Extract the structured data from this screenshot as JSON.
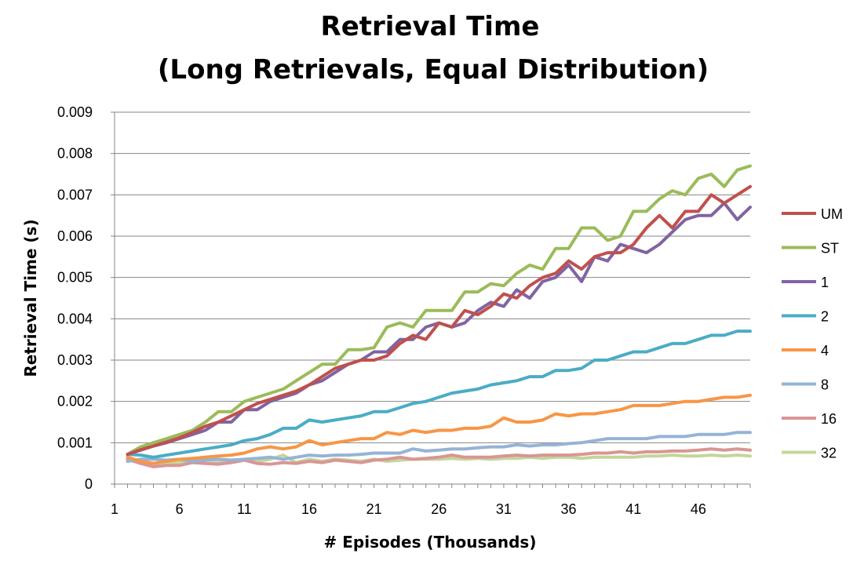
{
  "chart_data": {
    "type": "line",
    "title": "Retrieval Time",
    "subtitle": "(Long Retrievals, Equal Distribution)",
    "xlabel": "# Episodes (Thousands)",
    "ylabel": "Retrieval Time (s)",
    "xlim": [
      1,
      50
    ],
    "ylim": [
      0,
      0.009
    ],
    "x_tick_labels": [
      "1",
      "6",
      "11",
      "16",
      "21",
      "26",
      "31",
      "36",
      "41",
      "46"
    ],
    "x_tick_values": [
      1,
      6,
      11,
      16,
      21,
      26,
      31,
      36,
      41,
      46
    ],
    "y_tick_labels": [
      "0",
      "0.001",
      "0.002",
      "0.003",
      "0.004",
      "0.005",
      "0.006",
      "0.007",
      "0.008",
      "0.009"
    ],
    "y_tick_values": [
      0,
      0.001,
      0.002,
      0.003,
      0.004,
      0.005,
      0.006,
      0.007,
      0.008,
      0.009
    ],
    "grid": true,
    "legend_position": "right",
    "x": [
      2,
      3,
      4,
      5,
      6,
      7,
      8,
      9,
      10,
      11,
      12,
      13,
      14,
      15,
      16,
      17,
      18,
      19,
      20,
      21,
      22,
      23,
      24,
      25,
      26,
      27,
      28,
      29,
      30,
      31,
      32,
      33,
      34,
      35,
      36,
      37,
      38,
      39,
      40,
      41,
      42,
      43,
      44,
      45,
      46,
      47,
      48,
      49,
      50
    ],
    "series": [
      {
        "name": "UM",
        "color": "#C0504D",
        "values": [
          0.00072,
          0.00083,
          0.00092,
          0.00102,
          0.00112,
          0.00125,
          0.0014,
          0.0015,
          0.00165,
          0.0018,
          0.00195,
          0.00205,
          0.00215,
          0.00225,
          0.0024,
          0.0026,
          0.0028,
          0.0029,
          0.003,
          0.003,
          0.0031,
          0.0034,
          0.0036,
          0.0035,
          0.0039,
          0.0038,
          0.0042,
          0.0041,
          0.0043,
          0.0046,
          0.0045,
          0.0048,
          0.005,
          0.0051,
          0.0054,
          0.0052,
          0.0055,
          0.0056,
          0.0056,
          0.0058,
          0.0062,
          0.0065,
          0.0062,
          0.0066,
          0.0066,
          0.007,
          0.0068,
          0.007,
          0.0072
        ]
      },
      {
        "name": "ST",
        "color": "#9BBB59",
        "values": [
          0.00072,
          0.0009,
          0.001,
          0.0011,
          0.0012,
          0.0013,
          0.0015,
          0.00175,
          0.00175,
          0.002,
          0.0021,
          0.0022,
          0.0023,
          0.0025,
          0.0027,
          0.0029,
          0.0029,
          0.00325,
          0.00325,
          0.0033,
          0.0038,
          0.0039,
          0.0038,
          0.0042,
          0.0042,
          0.0042,
          0.00465,
          0.00465,
          0.00485,
          0.0048,
          0.0051,
          0.0053,
          0.0052,
          0.0057,
          0.0057,
          0.0062,
          0.0062,
          0.0059,
          0.006,
          0.0066,
          0.0066,
          0.0069,
          0.0071,
          0.007,
          0.0074,
          0.0075,
          0.0072,
          0.0076,
          0.0077
        ]
      },
      {
        "name": "1",
        "color": "#8064A2",
        "values": [
          0.00072,
          0.00082,
          0.00092,
          0.001,
          0.0011,
          0.0012,
          0.0013,
          0.0015,
          0.0015,
          0.0018,
          0.0018,
          0.002,
          0.0021,
          0.0022,
          0.0024,
          0.0025,
          0.0027,
          0.0029,
          0.003,
          0.0032,
          0.0032,
          0.0035,
          0.0035,
          0.0038,
          0.0039,
          0.0038,
          0.0039,
          0.0042,
          0.0044,
          0.0043,
          0.0047,
          0.0045,
          0.0049,
          0.005,
          0.0053,
          0.0049,
          0.0055,
          0.0054,
          0.0058,
          0.0057,
          0.0056,
          0.0058,
          0.0061,
          0.0064,
          0.0065,
          0.0065,
          0.0068,
          0.0064,
          0.0067
        ]
      },
      {
        "name": "2",
        "color": "#4BACC6",
        "values": [
          0.00072,
          0.0007,
          0.00065,
          0.0007,
          0.00075,
          0.0008,
          0.00085,
          0.0009,
          0.00095,
          0.00105,
          0.0011,
          0.0012,
          0.00135,
          0.00135,
          0.00155,
          0.0015,
          0.00155,
          0.0016,
          0.00165,
          0.00175,
          0.00175,
          0.00185,
          0.00195,
          0.002,
          0.0021,
          0.0022,
          0.00225,
          0.0023,
          0.0024,
          0.00245,
          0.0025,
          0.0026,
          0.0026,
          0.00275,
          0.00275,
          0.0028,
          0.003,
          0.003,
          0.0031,
          0.0032,
          0.0032,
          0.0033,
          0.0034,
          0.0034,
          0.0035,
          0.0036,
          0.0036,
          0.0037,
          0.0037
        ]
      },
      {
        "name": "4",
        "color": "#F79646",
        "values": [
          0.00065,
          0.00055,
          0.0005,
          0.00055,
          0.0006,
          0.00062,
          0.00065,
          0.00068,
          0.0007,
          0.00075,
          0.00085,
          0.0009,
          0.00085,
          0.0009,
          0.00105,
          0.00095,
          0.001,
          0.00105,
          0.0011,
          0.0011,
          0.00125,
          0.0012,
          0.0013,
          0.00125,
          0.0013,
          0.0013,
          0.00135,
          0.00135,
          0.0014,
          0.0016,
          0.0015,
          0.0015,
          0.00155,
          0.0017,
          0.00165,
          0.0017,
          0.0017,
          0.00175,
          0.0018,
          0.0019,
          0.0019,
          0.0019,
          0.00195,
          0.002,
          0.002,
          0.00205,
          0.0021,
          0.0021,
          0.00215
        ]
      },
      {
        "name": "8",
        "color": "#95B3D7",
        "values": [
          0.00055,
          0.0006,
          0.0006,
          0.00058,
          0.0006,
          0.00055,
          0.00058,
          0.0006,
          0.00058,
          0.0006,
          0.00062,
          0.00065,
          0.0006,
          0.00065,
          0.0007,
          0.00068,
          0.0007,
          0.0007,
          0.00072,
          0.00075,
          0.00075,
          0.00075,
          0.00085,
          0.0008,
          0.00082,
          0.00085,
          0.00085,
          0.00088,
          0.0009,
          0.0009,
          0.00095,
          0.00092,
          0.00095,
          0.00095,
          0.00098,
          0.001,
          0.00105,
          0.0011,
          0.0011,
          0.0011,
          0.0011,
          0.00115,
          0.00115,
          0.00115,
          0.0012,
          0.0012,
          0.0012,
          0.00125,
          0.00125
        ]
      },
      {
        "name": "16",
        "color": "#D99694",
        "values": [
          0.0006,
          0.0005,
          0.00042,
          0.00045,
          0.00045,
          0.00052,
          0.0005,
          0.00048,
          0.00052,
          0.00058,
          0.0005,
          0.00048,
          0.00052,
          0.0005,
          0.00055,
          0.00052,
          0.00058,
          0.00055,
          0.00052,
          0.00058,
          0.0006,
          0.00065,
          0.0006,
          0.00062,
          0.00065,
          0.0007,
          0.00065,
          0.00065,
          0.00065,
          0.00068,
          0.0007,
          0.00068,
          0.0007,
          0.0007,
          0.0007,
          0.00072,
          0.00075,
          0.00075,
          0.00078,
          0.00075,
          0.00078,
          0.00078,
          0.0008,
          0.0008,
          0.00082,
          0.00085,
          0.00082,
          0.00085,
          0.00082
        ]
      },
      {
        "name": "32",
        "color": "#C3D69B",
        "values": [
          0.00058,
          0.00055,
          0.0005,
          0.0005,
          0.00052,
          0.00055,
          0.0005,
          0.00052,
          0.00055,
          0.0006,
          0.00055,
          0.0006,
          0.0007,
          0.00052,
          0.0006,
          0.00055,
          0.0006,
          0.00058,
          0.00055,
          0.0006,
          0.00055,
          0.00058,
          0.0006,
          0.0006,
          0.0006,
          0.00062,
          0.0006,
          0.00062,
          0.0006,
          0.00062,
          0.00062,
          0.00065,
          0.00062,
          0.00065,
          0.00065,
          0.00062,
          0.00065,
          0.00065,
          0.00065,
          0.00065,
          0.00068,
          0.00068,
          0.0007,
          0.00068,
          0.00068,
          0.0007,
          0.00068,
          0.0007,
          0.00068
        ]
      }
    ]
  }
}
